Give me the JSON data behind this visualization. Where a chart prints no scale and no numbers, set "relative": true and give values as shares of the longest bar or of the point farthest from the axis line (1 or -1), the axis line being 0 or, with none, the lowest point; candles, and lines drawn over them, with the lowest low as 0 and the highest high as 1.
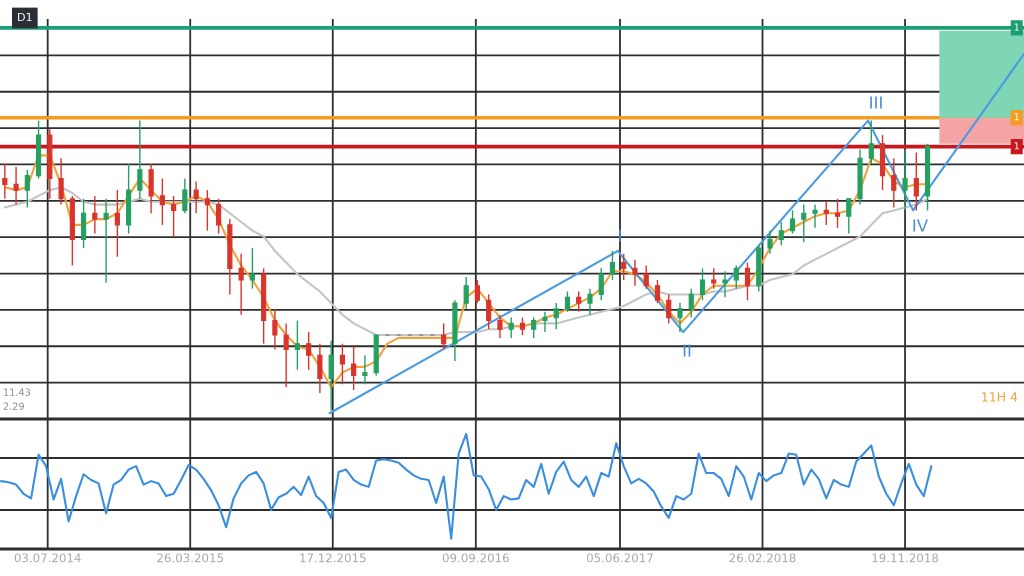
{
  "chart_data": [
    {
      "type": "candlestick",
      "relative": true,
      "stacked": true,
      "xlim": [
        "2014-04-05",
        "2019-06-29"
      ],
      "xticks": [
        {
          "value": "2014-07-03",
          "label": null
        },
        {
          "value": "2015-03-26",
          "label": null
        },
        {
          "value": "2015-12-17",
          "label": null
        },
        {
          "value": "2016-09-09",
          "label": null
        },
        {
          "value": "2017-06-05",
          "label": null
        },
        {
          "value": "2018-02-26",
          "label": null
        },
        {
          "value": "2018-11-19",
          "label": null
        }
      ],
      "grid": true,
      "tick_labels": false,
      "series": [
        {
          "type": "bar",
          "x": [
            "2019-04-11"
          ],
          "base": [
            0.92
          ],
          "values": [
            0.09
          ],
          "color": "#f4a4a4"
        },
        {
          "type": "bar",
          "x": [
            "2019-04-11"
          ],
          "values": [
            0.3
          ],
          "color": "#7fd6b4"
        },
        {
          "type": "line",
          "color": "#c4c4c4",
          "x": [
            "2014-04-14",
            "2014-05-05",
            "2014-05-26",
            "2014-06-16",
            "2014-07-07",
            "2014-07-28",
            "2014-08-18",
            "2014-09-08",
            "2014-09-29",
            "2014-10-20",
            "2014-11-10",
            "2014-12-01",
            "2014-12-22",
            "2015-01-12",
            "2015-02-02",
            "2015-02-23",
            "2015-03-16",
            "2015-04-06",
            "2015-04-27",
            "2015-05-18",
            "2015-06-08",
            "2015-06-29",
            "2015-07-20",
            "2015-08-10",
            "2015-08-31",
            "2015-09-21",
            "2015-10-12",
            "2015-11-02",
            "2015-11-23",
            "2015-12-14",
            "2016-01-04",
            "2016-01-25",
            "2016-02-15",
            "2016-03-07",
            "2016-03-28",
            "2016-04-18",
            "2016-05-09",
            "2016-05-30",
            "2016-06-20",
            "2016-07-11",
            "2016-08-01",
            "2016-08-22",
            "2016-09-12",
            "2016-10-03",
            "2016-10-24",
            "2016-11-14",
            "2016-12-05",
            "2016-12-26",
            "2017-01-16",
            "2017-02-06",
            "2017-02-27",
            "2017-03-20",
            "2017-04-10",
            "2017-05-01",
            "2017-05-22",
            "2017-06-12",
            "2017-07-03",
            "2017-07-24",
            "2017-08-14",
            "2017-09-04",
            "2017-09-25",
            "2017-10-16",
            "2017-11-06",
            "2017-11-27",
            "2017-12-18",
            "2018-01-08",
            "2018-01-29",
            "2018-02-19",
            "2018-03-12",
            "2018-04-02",
            "2018-04-23",
            "2018-05-14",
            "2018-06-04",
            "2018-06-25",
            "2018-07-16",
            "2018-08-06",
            "2018-08-27",
            "2018-09-17",
            "2018-10-08",
            "2018-10-29",
            "2018-11-19",
            "2018-12-10",
            "2018-12-31"
          ],
          "values": [
            0.7,
            0.71,
            0.72,
            0.74,
            0.76,
            0.77,
            0.75,
            0.72,
            0.71,
            0.71,
            0.71,
            0.72,
            0.73,
            0.72,
            0.72,
            0.72,
            0.72,
            0.72,
            0.72,
            0.71,
            0.68,
            0.65,
            0.62,
            0.6,
            0.55,
            0.51,
            0.47,
            0.44,
            0.41,
            0.37,
            0.33,
            0.3,
            0.28,
            0.26,
            0.26,
            0.26,
            0.26,
            0.26,
            0.26,
            0.26,
            0.27,
            0.27,
            0.27,
            0.28,
            0.28,
            0.29,
            0.29,
            0.3,
            0.3,
            0.3,
            0.31,
            0.32,
            0.33,
            0.34,
            0.35,
            0.36,
            0.38,
            0.4,
            0.41,
            0.4,
            0.4,
            0.4,
            0.4,
            0.41,
            0.41,
            0.42,
            0.43,
            0.43,
            0.45,
            0.46,
            0.47,
            0.5,
            0.52,
            0.54,
            0.56,
            0.58,
            0.6,
            0.64,
            0.68,
            0.69,
            0.7,
            0.71,
            0.73
          ]
        },
        {
          "type": "line",
          "color": "#f0a23c",
          "x": [
            "2014-04-14",
            "2014-05-05",
            "2014-05-26",
            "2014-06-16",
            "2014-07-07",
            "2014-07-28",
            "2014-08-18",
            "2014-09-08",
            "2014-09-29",
            "2014-10-20",
            "2014-11-10",
            "2014-12-01",
            "2014-12-22",
            "2015-01-12",
            "2015-02-02",
            "2015-02-23",
            "2015-03-16",
            "2015-04-06",
            "2015-04-27",
            "2015-05-18",
            "2015-06-08",
            "2015-06-29",
            "2015-07-20",
            "2015-08-10",
            "2015-08-31",
            "2015-09-21",
            "2015-10-12",
            "2015-11-02",
            "2015-11-23",
            "2015-12-14",
            "2016-01-04",
            "2016-01-25",
            "2016-02-15",
            "2016-03-07",
            "2016-03-28",
            "2016-04-18",
            "2016-05-09",
            "2016-05-30",
            "2016-06-20",
            "2016-07-11",
            "2016-08-01",
            "2016-08-22",
            "2016-09-12",
            "2016-10-03",
            "2016-10-24",
            "2016-11-14",
            "2016-12-05",
            "2016-12-26",
            "2017-01-16",
            "2017-02-06",
            "2017-02-27",
            "2017-03-20",
            "2017-04-10",
            "2017-05-01",
            "2017-05-22",
            "2017-06-12",
            "2017-07-03",
            "2017-07-24",
            "2017-08-14",
            "2017-09-04",
            "2017-09-25",
            "2017-10-16",
            "2017-11-06",
            "2017-11-27",
            "2017-12-18",
            "2018-01-08",
            "2018-01-29",
            "2018-02-19",
            "2018-03-12",
            "2018-04-02",
            "2018-04-23",
            "2018-05-14",
            "2018-06-04",
            "2018-06-25",
            "2018-07-16",
            "2018-08-06",
            "2018-08-27",
            "2018-09-17",
            "2018-10-08",
            "2018-10-29",
            "2018-11-19",
            "2018-12-10",
            "2018-12-31"
          ],
          "values": [
            0.77,
            0.76,
            0.77,
            0.88,
            0.88,
            0.78,
            0.64,
            0.64,
            0.66,
            0.66,
            0.68,
            0.74,
            0.8,
            0.76,
            0.72,
            0.71,
            0.72,
            0.74,
            0.72,
            0.66,
            0.57,
            0.5,
            0.45,
            0.39,
            0.31,
            0.26,
            0.22,
            0.21,
            0.15,
            0.08,
            0.13,
            0.15,
            0.15,
            0.17,
            0.23,
            0.25,
            0.25,
            0.25,
            0.25,
            0.25,
            0.25,
            0.39,
            0.42,
            0.37,
            0.32,
            0.29,
            0.29,
            0.3,
            0.32,
            0.33,
            0.35,
            0.37,
            0.39,
            0.42,
            0.48,
            0.48,
            0.47,
            0.44,
            0.4,
            0.34,
            0.3,
            0.34,
            0.4,
            0.43,
            0.43,
            0.43,
            0.43,
            0.49,
            0.56,
            0.61,
            0.63,
            0.65,
            0.67,
            0.68,
            0.68,
            0.69,
            0.76,
            0.87,
            0.85,
            0.79,
            0.77,
            0.78,
            0.78
          ]
        },
        {
          "type": "line",
          "color": "#4a9be0",
          "x": [
            "2015-12-11",
            "2017-06-01",
            "2017-10-01",
            "2018-09-11",
            "2018-12-04",
            "2019-06-29"
          ],
          "values": [
            -0.01,
            0.55,
            0.27,
            1.0,
            0.69,
            1.23
          ]
        },
        {
          "type": "candlestick",
          "x": [
            "2014-04-14",
            "2014-05-05",
            "2014-05-26",
            "2014-06-16",
            "2014-07-07",
            "2014-07-28",
            "2014-08-18",
            "2014-09-08",
            "2014-09-29",
            "2014-10-20",
            "2014-11-10",
            "2014-12-01",
            "2014-12-22",
            "2015-01-12",
            "2015-02-02",
            "2015-02-23",
            "2015-03-16",
            "2015-04-06",
            "2015-04-27",
            "2015-05-18",
            "2015-06-08",
            "2015-06-29",
            "2015-07-20",
            "2015-08-10",
            "2015-08-31",
            "2015-09-21",
            "2015-10-12",
            "2015-11-02",
            "2015-11-23",
            "2015-12-14",
            "2016-01-04",
            "2016-01-25",
            "2016-02-15",
            "2016-03-07",
            "2016-03-28",
            "2016-04-18",
            "2016-05-09",
            "2016-05-30",
            "2016-06-20",
            "2016-07-11",
            "2016-08-01",
            "2016-08-22",
            "2016-09-12",
            "2016-10-03",
            "2016-10-24",
            "2016-11-14",
            "2016-12-05",
            "2016-12-26",
            "2017-01-16",
            "2017-02-06",
            "2017-02-27",
            "2017-03-20",
            "2017-04-10",
            "2017-05-01",
            "2017-05-22",
            "2017-06-12",
            "2017-07-03",
            "2017-07-24",
            "2017-08-14",
            "2017-09-04",
            "2017-09-25",
            "2017-10-16",
            "2017-11-06",
            "2017-11-27",
            "2017-12-18",
            "2018-01-08",
            "2018-01-29",
            "2018-02-19",
            "2018-03-12",
            "2018-04-02",
            "2018-04-23",
            "2018-05-14",
            "2018-06-04",
            "2018-06-25",
            "2018-07-16",
            "2018-08-06",
            "2018-08-27",
            "2018-09-17",
            "2018-10-08",
            "2018-10-29",
            "2018-11-19",
            "2018-12-10",
            "2018-12-31"
          ],
          "ohlc": [
            [
              0.8,
              0.85,
              0.73,
              0.78
            ],
            [
              0.78,
              0.84,
              0.71,
              0.76
            ],
            [
              0.76,
              0.83,
              0.7,
              0.81
            ],
            [
              0.81,
              1.0,
              0.8,
              0.95
            ],
            [
              0.95,
              0.97,
              0.73,
              0.8
            ],
            [
              0.8,
              0.87,
              0.71,
              0.73
            ],
            [
              0.73,
              0.74,
              0.5,
              0.59
            ],
            [
              0.59,
              0.73,
              0.56,
              0.68
            ],
            [
              0.68,
              0.74,
              0.61,
              0.66
            ],
            [
              0.66,
              0.73,
              0.44,
              0.68
            ],
            [
              0.68,
              0.76,
              0.53,
              0.64
            ],
            [
              0.64,
              0.85,
              0.61,
              0.76
            ],
            [
              0.76,
              1.0,
              0.73,
              0.83
            ],
            [
              0.83,
              0.85,
              0.68,
              0.74
            ],
            [
              0.74,
              0.8,
              0.64,
              0.71
            ],
            [
              0.71,
              0.74,
              0.6,
              0.69
            ],
            [
              0.69,
              0.8,
              0.68,
              0.76
            ],
            [
              0.76,
              0.79,
              0.68,
              0.73
            ],
            [
              0.73,
              0.76,
              0.62,
              0.71
            ],
            [
              0.71,
              0.73,
              0.61,
              0.64
            ],
            [
              0.64,
              0.66,
              0.4,
              0.49
            ],
            [
              0.49,
              0.54,
              0.33,
              0.45
            ],
            [
              0.45,
              0.56,
              0.42,
              0.47
            ],
            [
              0.47,
              0.49,
              0.23,
              0.31
            ],
            [
              0.31,
              0.35,
              0.21,
              0.26
            ],
            [
              0.26,
              0.3,
              0.08,
              0.21
            ],
            [
              0.21,
              0.31,
              0.14,
              0.23
            ],
            [
              0.23,
              0.27,
              0.14,
              0.19
            ],
            [
              0.19,
              0.23,
              0.06,
              0.11
            ],
            [
              0.11,
              0.24,
              0.0,
              0.19
            ],
            [
              0.19,
              0.23,
              0.09,
              0.16
            ],
            [
              0.16,
              0.22,
              0.07,
              0.12
            ],
            [
              0.12,
              0.19,
              0.09,
              0.13
            ],
            [
              0.13,
              0.26,
              0.12,
              0.26
            ],
            [
              0.26,
              0.26,
              0.26,
              0.26
            ],
            [
              0.26,
              0.26,
              0.26,
              0.26
            ],
            [
              0.26,
              0.26,
              0.26,
              0.26
            ],
            [
              0.26,
              0.26,
              0.26,
              0.26
            ],
            [
              0.26,
              0.26,
              0.26,
              0.26
            ],
            [
              0.26,
              0.3,
              0.21,
              0.23
            ],
            [
              0.23,
              0.38,
              0.17,
              0.37
            ],
            [
              0.37,
              0.46,
              0.35,
              0.43
            ],
            [
              0.43,
              0.45,
              0.37,
              0.38
            ],
            [
              0.38,
              0.4,
              0.28,
              0.31
            ],
            [
              0.31,
              0.33,
              0.25,
              0.28
            ],
            [
              0.28,
              0.32,
              0.25,
              0.3
            ],
            [
              0.3,
              0.32,
              0.26,
              0.28
            ],
            [
              0.28,
              0.32,
              0.25,
              0.31
            ],
            [
              0.31,
              0.34,
              0.27,
              0.32
            ],
            [
              0.32,
              0.37,
              0.28,
              0.35
            ],
            [
              0.35,
              0.41,
              0.34,
              0.39
            ],
            [
              0.39,
              0.41,
              0.34,
              0.37
            ],
            [
              0.37,
              0.42,
              0.33,
              0.4
            ],
            [
              0.4,
              0.49,
              0.38,
              0.47
            ],
            [
              0.47,
              0.55,
              0.45,
              0.51
            ],
            [
              0.51,
              0.54,
              0.45,
              0.49
            ],
            [
              0.49,
              0.52,
              0.43,
              0.47
            ],
            [
              0.47,
              0.5,
              0.42,
              0.43
            ],
            [
              0.43,
              0.45,
              0.37,
              0.38
            ],
            [
              0.38,
              0.4,
              0.3,
              0.32
            ],
            [
              0.32,
              0.37,
              0.27,
              0.35
            ],
            [
              0.35,
              0.42,
              0.32,
              0.4
            ],
            [
              0.4,
              0.49,
              0.38,
              0.45
            ],
            [
              0.45,
              0.49,
              0.42,
              0.44
            ],
            [
              0.44,
              0.48,
              0.39,
              0.45
            ],
            [
              0.45,
              0.5,
              0.42,
              0.49
            ],
            [
              0.49,
              0.51,
              0.38,
              0.43
            ],
            [
              0.43,
              0.57,
              0.41,
              0.56
            ],
            [
              0.56,
              0.62,
              0.54,
              0.59
            ],
            [
              0.59,
              0.65,
              0.57,
              0.62
            ],
            [
              0.62,
              0.69,
              0.61,
              0.66
            ],
            [
              0.66,
              0.71,
              0.58,
              0.68
            ],
            [
              0.68,
              0.71,
              0.63,
              0.69
            ],
            [
              0.69,
              0.72,
              0.64,
              0.68
            ],
            [
              0.68,
              0.73,
              0.63,
              0.67
            ],
            [
              0.67,
              0.73,
              0.61,
              0.73
            ],
            [
              0.73,
              0.9,
              0.71,
              0.87
            ],
            [
              0.87,
              1.0,
              0.85,
              0.92
            ],
            [
              0.92,
              0.95,
              0.76,
              0.81
            ],
            [
              0.81,
              0.87,
              0.7,
              0.76
            ],
            [
              0.76,
              0.9,
              0.69,
              0.8
            ],
            [
              0.8,
              0.89,
              0.69,
              0.74
            ],
            [
              0.74,
              0.92,
              0.69,
              0.91
            ]
          ],
          "colors": [
            "#d9342b",
            "#d9342b",
            "#26a060",
            "#26a060",
            "#d9342b",
            "#d9342b",
            "#d9342b",
            "#26a060",
            "#d9342b",
            "#26a060",
            "#d9342b",
            "#26a060",
            "#26a060",
            "#d9342b",
            "#d9342b",
            "#d9342b",
            "#26a060",
            "#d9342b",
            "#d9342b",
            "#d9342b",
            "#d9342b",
            "#d9342b",
            "#26a060",
            "#d9342b",
            "#d9342b",
            "#d9342b",
            "#26a060",
            "#d9342b",
            "#d9342b",
            "#26a060",
            "#d9342b",
            "#d9342b",
            "#26a060",
            "#26a060",
            "#6e6a80",
            "#6e6a80",
            "#6e6a80",
            "#6e6a80",
            "#6e6a80",
            "#d9342b",
            "#26a060",
            "#26a060",
            "#d9342b",
            "#d9342b",
            "#d9342b",
            "#26a060",
            "#d9342b",
            "#26a060",
            "#26a060",
            "#26a060",
            "#26a060",
            "#d9342b",
            "#26a060",
            "#26a060",
            "#26a060",
            "#d9342b",
            "#d9342b",
            "#d9342b",
            "#d9342b",
            "#d9342b",
            "#26a060",
            "#26a060",
            "#26a060",
            "#d9342b",
            "#26a060",
            "#26a060",
            "#d9342b",
            "#26a060",
            "#26a060",
            "#26a060",
            "#26a060",
            "#26a060",
            "#26a060",
            "#d9342b",
            "#d9342b",
            "#26a060",
            "#26a060",
            "#26a060",
            "#d9342b",
            "#d9342b",
            "#26a060",
            "#d9342b",
            "#26a060"
          ]
        }
      ],
      "ref_lines": [
        {
          "axis": "y",
          "value": 1.32,
          "label": "1",
          "color": "#1e9e74"
        },
        {
          "axis": "y",
          "value": 1.01,
          "label": "1",
          "color": "#f39c1f"
        },
        {
          "axis": "y",
          "value": 0.91,
          "label": "1",
          "color": "#c8171e"
        }
      ],
      "annotations": [
        "D1",
        "11.43",
        "2.29",
        "11H 4",
        "I",
        "II",
        "III",
        "IV"
      ]
    },
    {
      "type": "line",
      "relative": true,
      "xlim": [
        "2014-04-05",
        "2019-06-29"
      ],
      "xticks": [
        {
          "value": "2014-07-03",
          "label": "03.07.2014"
        },
        {
          "value": "2015-03-26",
          "label": "26.03.2015"
        },
        {
          "value": "2015-12-17",
          "label": "17.12.2015"
        },
        {
          "value": "2016-09-09",
          "label": "09.09.2016"
        },
        {
          "value": "2017-06-05",
          "label": "05.06.2017"
        },
        {
          "value": "2018-02-26",
          "label": "26.02.2018"
        },
        {
          "value": "2018-11-19",
          "label": "19.11.2018"
        }
      ],
      "grid": true,
      "tick_labels": "x",
      "series": [
        {
          "color": "#3a8ee0",
          "x": [
            "2014-04-07",
            "2014-04-21",
            "2014-05-05",
            "2014-05-19",
            "2014-06-02",
            "2014-06-16",
            "2014-06-30",
            "2014-07-14",
            "2014-07-28",
            "2014-08-11",
            "2014-08-25",
            "2014-09-08",
            "2014-09-22",
            "2014-10-06",
            "2014-10-20",
            "2014-11-03",
            "2014-11-17",
            "2014-12-01",
            "2014-12-15",
            "2014-12-29",
            "2015-01-12",
            "2015-01-26",
            "2015-02-09",
            "2015-02-23",
            "2015-03-09",
            "2015-03-23",
            "2015-04-06",
            "2015-04-20",
            "2015-05-04",
            "2015-05-18",
            "2015-06-01",
            "2015-06-15",
            "2015-06-29",
            "2015-07-13",
            "2015-07-27",
            "2015-08-10",
            "2015-08-24",
            "2015-09-07",
            "2015-09-21",
            "2015-10-05",
            "2015-10-19",
            "2015-11-02",
            "2015-11-16",
            "2015-11-30",
            "2015-12-14",
            "2015-12-28",
            "2016-01-11",
            "2016-01-25",
            "2016-02-08",
            "2016-02-22",
            "2016-03-07",
            "2016-03-21",
            "2016-04-04",
            "2016-04-18",
            "2016-05-02",
            "2016-05-16",
            "2016-05-30",
            "2016-06-13",
            "2016-06-27",
            "2016-07-11",
            "2016-07-25",
            "2016-08-08",
            "2016-08-22",
            "2016-09-05",
            "2016-09-19",
            "2016-10-03",
            "2016-10-17",
            "2016-10-31",
            "2016-11-14",
            "2016-11-28",
            "2016-12-12",
            "2016-12-26",
            "2017-01-09",
            "2017-01-23",
            "2017-02-06",
            "2017-02-20",
            "2017-03-06",
            "2017-03-20",
            "2017-04-03",
            "2017-04-17",
            "2017-05-01",
            "2017-05-15",
            "2017-05-29",
            "2017-06-12",
            "2017-06-26",
            "2017-07-10",
            "2017-07-24",
            "2017-08-07",
            "2017-08-21",
            "2017-09-04",
            "2017-09-18",
            "2017-10-02",
            "2017-10-16",
            "2017-10-30",
            "2017-11-13",
            "2017-11-27",
            "2017-12-11",
            "2017-12-25",
            "2018-01-08",
            "2018-01-22",
            "2018-02-05",
            "2018-02-19",
            "2018-03-05",
            "2018-03-19",
            "2018-04-02",
            "2018-04-16",
            "2018-04-30",
            "2018-05-14",
            "2018-05-28",
            "2018-06-11",
            "2018-06-25",
            "2018-07-09",
            "2018-07-23",
            "2018-08-06",
            "2018-08-20",
            "2018-09-03",
            "2018-09-17",
            "2018-10-01",
            "2018-10-15",
            "2018-10-29",
            "2018-11-12",
            "2018-11-26",
            "2018-12-10",
            "2018-12-24",
            "2019-01-07"
          ],
          "values": [
            0.59,
            0.58,
            0.56,
            0.48,
            0.44,
            0.82,
            0.72,
            0.43,
            0.61,
            0.24,
            0.46,
            0.65,
            0.6,
            0.57,
            0.31,
            0.56,
            0.6,
            0.69,
            0.72,
            0.56,
            0.59,
            0.57,
            0.46,
            0.48,
            0.6,
            0.73,
            0.69,
            0.61,
            0.51,
            0.38,
            0.19,
            0.44,
            0.57,
            0.64,
            0.67,
            0.57,
            0.34,
            0.45,
            0.48,
            0.54,
            0.47,
            0.63,
            0.46,
            0.4,
            0.27,
            0.67,
            0.69,
            0.6,
            0.56,
            0.54,
            0.77,
            0.78,
            0.77,
            0.75,
            0.69,
            0.64,
            0.61,
            0.6,
            0.4,
            0.63,
            0.09,
            0.83,
            1.0,
            0.64,
            0.63,
            0.52,
            0.34,
            0.46,
            0.43,
            0.44,
            0.6,
            0.54,
            0.74,
            0.48,
            0.67,
            0.76,
            0.6,
            0.54,
            0.63,
            0.46,
            0.66,
            0.63,
            0.92,
            0.72,
            0.57,
            0.61,
            0.57,
            0.5,
            0.37,
            0.27,
            0.46,
            0.43,
            0.48,
            0.83,
            0.66,
            0.66,
            0.61,
            0.46,
            0.72,
            0.63,
            0.43,
            0.66,
            0.59,
            0.64,
            0.66,
            0.83,
            0.82,
            0.56,
            0.69,
            0.61,
            0.44,
            0.6,
            0.56,
            0.54,
            0.76,
            0.83,
            0.9,
            0.63,
            0.48,
            0.38,
            0.57,
            0.74,
            0.56,
            0.46,
            0.72
          ]
        }
      ]
    }
  ]
}
